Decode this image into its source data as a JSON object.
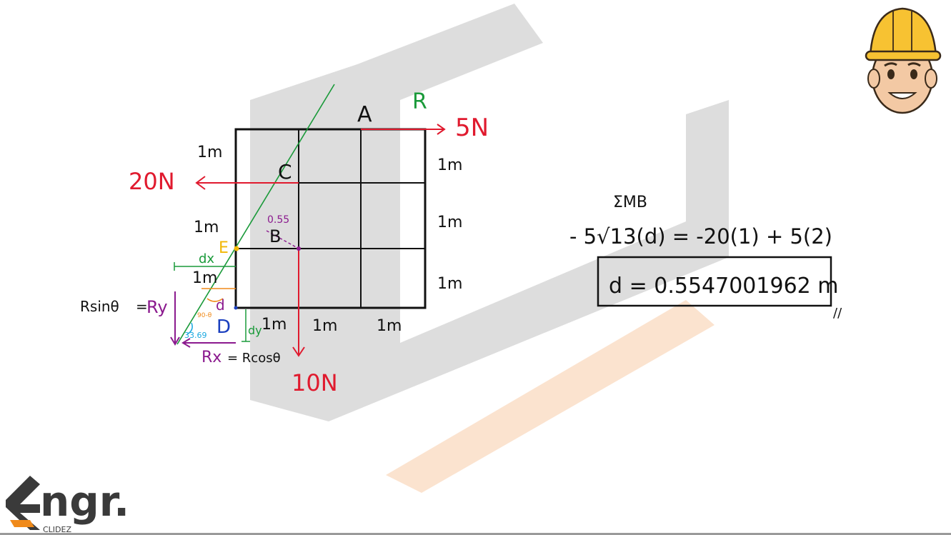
{
  "diagram": {
    "labels": {
      "point_a": "A",
      "point_b": "B",
      "point_c": "C",
      "point_d": "D",
      "point_e": "E",
      "resultant": "R"
    },
    "forces": {
      "f_5n": "5N",
      "f_20n": "20N",
      "f_10n": "10N"
    },
    "dimensions": {
      "left_top": "1m",
      "left_mid": "1m",
      "left_low": "1m",
      "right_top": "1m",
      "right_mid": "1m",
      "right_low": "1m",
      "bottom_1": "1m",
      "bottom_2": "1m",
      "bottom_3": "1m"
    },
    "annotations": {
      "dx": "dx",
      "dy": "dy",
      "d": "d",
      "perp_len": "0.55",
      "angle_deg": "33.69",
      "angle_comp": "90-θ",
      "ry_label": "Rsinθ",
      "ry_eq": "=",
      "ry_sym": "Ry",
      "rx_sym": "Rx",
      "rx_eq": "= Rcosθ"
    },
    "equations": {
      "moment_heading": "ΣMB",
      "moment_eq": "- 5√13(d) = -20(1) + 5(2)",
      "answer": "d = 0.5547001962 m",
      "check": "//"
    },
    "colors": {
      "force_red": "#e01a2e",
      "resultant_green": "#1a9a3a",
      "purple": "#8b1a8e",
      "orange": "#f08a1a",
      "yellow": "#f2b705",
      "cyan": "#1aa8e0",
      "blue": "#1a3fbf",
      "watermark_gray": "#d9d9d9",
      "watermark_orange": "#fbe3cf"
    }
  },
  "brand": {
    "logo_text": "ngr.",
    "logo_sub": "CLIDEZ"
  }
}
